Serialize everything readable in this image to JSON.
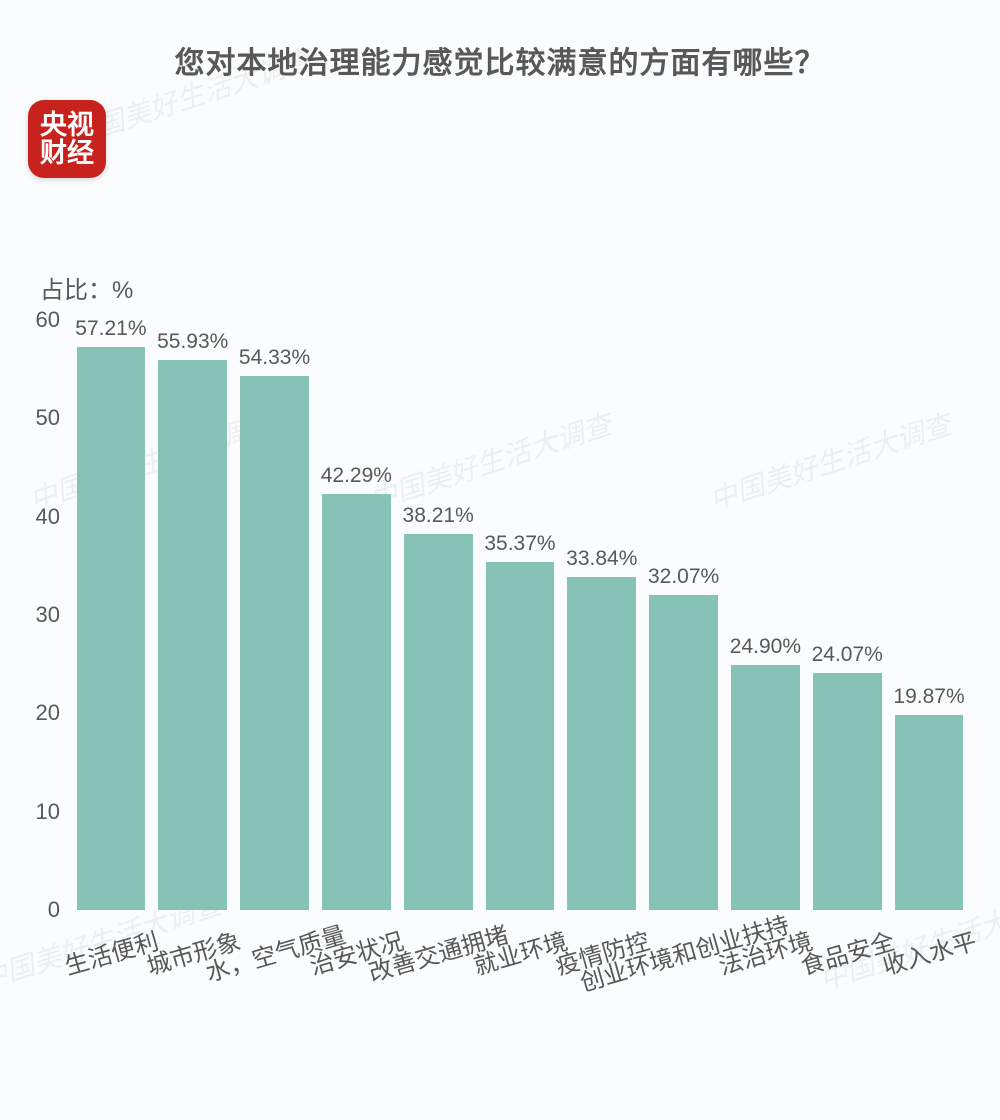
{
  "title": {
    "text": "您对本地治理能力感觉比较满意的方面有哪些？",
    "fontsize": 30,
    "color": "#585858"
  },
  "logo": {
    "line1": "央视",
    "line2": "财经",
    "bg": "#c8221e",
    "fontsize": 27
  },
  "watermark_text": "中国美好生活大调查",
  "y_axis": {
    "label": "占比：%",
    "label_fontsize": 24,
    "label_color": "#585858",
    "ticks": [
      0,
      10,
      20,
      30,
      40,
      50,
      60
    ],
    "tick_fontsize": 22,
    "tick_color": "#585858",
    "max": 60
  },
  "chart": {
    "type": "bar",
    "bar_color": "#86c3b6",
    "value_label_color": "#585858",
    "value_label_fontsize": 21,
    "xlabel_color": "#585858",
    "xlabel_fontsize": 24,
    "categories": [
      "生活便利",
      "城市形象",
      "水，空气质量",
      "治安状况",
      "改善交通拥堵",
      "就业环境",
      "疫情防控",
      "创业环境和创业扶持",
      "法治环境",
      "食品安全",
      "收入水平"
    ],
    "values": [
      57.21,
      55.93,
      54.33,
      42.29,
      38.21,
      35.37,
      33.84,
      32.07,
      24.9,
      24.07,
      19.87
    ],
    "value_labels": [
      "57.21%",
      "55.93%",
      "54.33%",
      "42.29%",
      "38.21%",
      "35.37%",
      "33.84%",
      "32.07%",
      "24.90%",
      "24.07%",
      "19.87%"
    ]
  },
  "background_color": "#fafcfd"
}
